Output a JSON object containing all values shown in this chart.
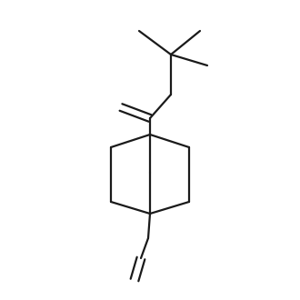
{
  "background": "#ffffff",
  "line_color": "#1a1a1a",
  "line_width": 1.6,
  "fig_width": 3.3,
  "fig_height": 3.3,
  "dpi": 100
}
